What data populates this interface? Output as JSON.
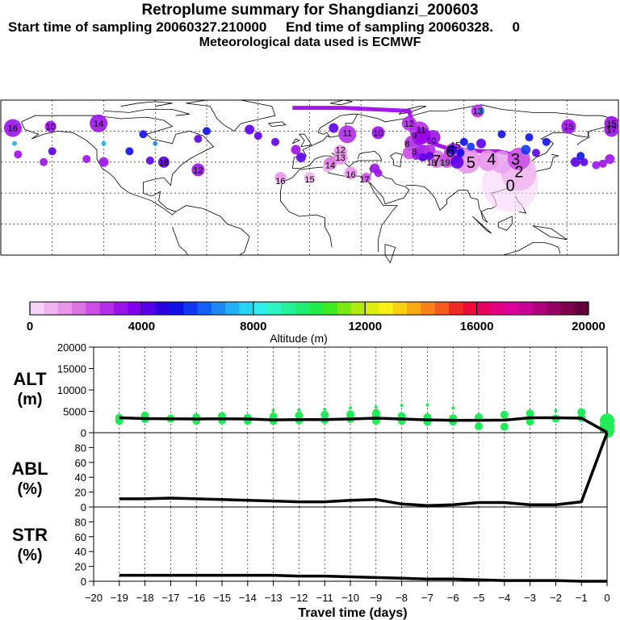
{
  "header": {
    "title": "Retroplume summary for Shangdianzi_200603",
    "sampling_line": "Start time of sampling 20060327.210000     End time of sampling 20060328.     0",
    "met_line": "Meteorological data used is ECMWF"
  },
  "map": {
    "cluster_labels": [
      {
        "label": "16",
        "lon": -173,
        "lat": 62
      },
      {
        "label": "10",
        "lon": -151,
        "lat": 63
      },
      {
        "label": "14",
        "lon": -123,
        "lat": 65
      },
      {
        "label": "12",
        "lon": 58,
        "lat": 65
      },
      {
        "label": "13",
        "lon": 98,
        "lat": 73
      },
      {
        "label": "15",
        "lon": 151,
        "lat": 63
      },
      {
        "label": "15",
        "lon": 176,
        "lat": 65
      },
      {
        "label": "17",
        "lon": 176,
        "lat": 61
      },
      {
        "label": "11",
        "lon": 22,
        "lat": 59
      },
      {
        "label": "10",
        "lon": 40,
        "lat": 59
      },
      {
        "label": "9",
        "lon": 61,
        "lat": 57
      },
      {
        "label": "11",
        "lon": 65,
        "lat": 61
      },
      {
        "label": "10",
        "lon": 71,
        "lat": 54
      },
      {
        "label": "8",
        "lon": 61,
        "lat": 47
      },
      {
        "label": "8",
        "lon": 57,
        "lat": 52
      },
      {
        "label": "7",
        "lon": 74,
        "lat": 41
      },
      {
        "label": "6",
        "lon": 82,
        "lat": 47
      },
      {
        "label": "5",
        "lon": 94,
        "lat": 40
      },
      {
        "label": "4",
        "lon": 106,
        "lat": 42
      },
      {
        "label": "3",
        "lon": 120,
        "lat": 42
      },
      {
        "label": "2",
        "lon": 122,
        "lat": 34
      },
      {
        "label": "0",
        "lon": 117,
        "lat": 25
      },
      {
        "label": "12",
        "lon": 18,
        "lat": 48
      },
      {
        "label": "13",
        "lon": 18,
        "lat": 43
      },
      {
        "label": "14",
        "lon": 12,
        "lat": 38
      },
      {
        "label": "16",
        "lon": 24,
        "lat": 32
      },
      {
        "label": "16",
        "lon": -17,
        "lat": 28
      },
      {
        "label": "15",
        "lon": 0,
        "lat": 29
      },
      {
        "label": "17",
        "lon": 32,
        "lat": 29
      },
      {
        "label": "15",
        "lon": 85,
        "lat": 51
      },
      {
        "label": "18",
        "lon": 71,
        "lat": 40
      },
      {
        "label": "19",
        "lon": 79,
        "lat": 40
      },
      {
        "label": "12",
        "lon": -65,
        "lat": 35
      },
      {
        "label": "18",
        "lon": -85,
        "lat": 40
      }
    ]
  },
  "colorbar": {
    "tick_labels": [
      "0",
      "4000",
      "8000",
      "12000",
      "16000",
      "20000"
    ],
    "label": "Altitude (m)",
    "colors": [
      "#f7d3f7",
      "#f0b4f0",
      "#e896ea",
      "#dc74e6",
      "#cc4ee6",
      "#b22ee8",
      "#9a12ea",
      "#8000ee",
      "#5a00e8",
      "#2a00e0",
      "#1010e8",
      "#1038f2",
      "#1460f4",
      "#1c88f6",
      "#20b0f6",
      "#28d4f4",
      "#2eeee8",
      "#2ef4c4",
      "#26f09a",
      "#1eee70",
      "#20ec48",
      "#3eea20",
      "#7aea12",
      "#b0ea10",
      "#dcee10",
      "#f8f010",
      "#f8d010",
      "#f8aa10",
      "#f8821a",
      "#f45a1e",
      "#f02a20",
      "#ec0a38",
      "#e8005c",
      "#e40080",
      "#dc009c",
      "#c80096",
      "#b0007c",
      "#960064",
      "#7c004c",
      "#62003c"
    ]
  },
  "chart_data": [
    {
      "type": "line",
      "name": "altitude",
      "ylabel": "ALT",
      "ylabel2": "(m)",
      "ylim": [
        0,
        20000
      ],
      "yticks": [
        0,
        5000,
        10000,
        15000,
        20000
      ],
      "x": [
        -19,
        -18,
        -17,
        -16,
        -15,
        -14,
        -13,
        -12,
        -11,
        -10,
        -9,
        -8,
        -7,
        -6,
        -5,
        -4,
        -3,
        -2,
        -1,
        0
      ],
      "values": [
        3500,
        3300,
        3250,
        3200,
        3250,
        3200,
        3000,
        3050,
        3050,
        3200,
        3400,
        3200,
        3000,
        2900,
        2900,
        2950,
        3500,
        3500,
        3400,
        100
      ],
      "scatter_points": [
        [
          -19,
          3500
        ],
        [
          -19,
          2800
        ],
        [
          -18,
          3200
        ],
        [
          -18,
          4000
        ],
        [
          -17,
          3300
        ],
        [
          -16,
          2800
        ],
        [
          -16,
          3600
        ],
        [
          -15,
          2900
        ],
        [
          -15,
          3900
        ],
        [
          -14,
          2800
        ],
        [
          -14,
          3500
        ],
        [
          -13,
          2800
        ],
        [
          -13,
          3800
        ],
        [
          -13,
          5200
        ],
        [
          -12,
          2900
        ],
        [
          -12,
          4000
        ],
        [
          -12,
          5300
        ],
        [
          -11,
          3000
        ],
        [
          -11,
          4200
        ],
        [
          -11,
          5500
        ],
        [
          -10,
          3200
        ],
        [
          -10,
          4300
        ],
        [
          -10,
          5800
        ],
        [
          -9,
          2800
        ],
        [
          -9,
          3900
        ],
        [
          -9,
          4600
        ],
        [
          -9,
          6000
        ],
        [
          -8,
          2800
        ],
        [
          -8,
          3900
        ],
        [
          -8,
          6400
        ],
        [
          -7,
          2600
        ],
        [
          -7,
          3600
        ],
        [
          -7,
          6500
        ],
        [
          -6,
          2600
        ],
        [
          -6,
          3400
        ],
        [
          -6,
          5800
        ],
        [
          -5,
          1500
        ],
        [
          -5,
          3600
        ],
        [
          -4,
          1400
        ],
        [
          -4,
          4200
        ],
        [
          -3,
          2600
        ],
        [
          -3,
          4500
        ],
        [
          -2,
          3300
        ],
        [
          -2,
          5200
        ],
        [
          -1,
          3500
        ],
        [
          -1,
          4800
        ],
        [
          0,
          500
        ],
        [
          0,
          1500
        ],
        [
          0,
          2800
        ]
      ]
    },
    {
      "type": "line",
      "name": "abl",
      "ylabel": "ABL",
      "ylabel2": "(%)",
      "ylim": [
        0,
        100
      ],
      "yticks": [
        0,
        20,
        40,
        60,
        80
      ],
      "x": [
        -19,
        -18,
        -17,
        -16,
        -15,
        -14,
        -13,
        -12,
        -11,
        -10,
        -9,
        -8,
        -7,
        -6,
        -5,
        -4,
        -3,
        -2,
        -1,
        0
      ],
      "values": [
        11,
        11,
        12,
        11,
        10,
        9,
        8,
        7,
        7,
        9,
        10,
        4,
        2,
        3,
        6,
        6,
        3,
        3,
        7,
        100
      ]
    },
    {
      "type": "line",
      "name": "str",
      "ylabel": "STR",
      "ylabel2": "(%)",
      "ylim": [
        0,
        100
      ],
      "yticks": [
        0,
        20,
        40,
        60,
        80
      ],
      "x": [
        -19,
        -18,
        -17,
        -16,
        -15,
        -14,
        -13,
        -12,
        -11,
        -10,
        -9,
        -8,
        -7,
        -6,
        -5,
        -4,
        -3,
        -2,
        -1,
        0
      ],
      "values": [
        8,
        8,
        8,
        8,
        8,
        8,
        8,
        7,
        7,
        6,
        5,
        4,
        3,
        3,
        2,
        1,
        1,
        1,
        0,
        0
      ]
    }
  ],
  "xaxis": {
    "label": "Travel time (days)",
    "ticks": [
      "−20",
      "−19",
      "−18",
      "−17",
      "−16",
      "−15",
      "−14",
      "−13",
      "−12",
      "−11",
      "−10",
      "−9",
      "−8",
      "−7",
      "−6",
      "−5",
      "−4",
      "−3",
      "−2",
      "−1",
      "0"
    ],
    "tick_labels": [
      "−20",
      "−19",
      "−18",
      "−17",
      "−16",
      "−15",
      "−14",
      "−13",
      "−12",
      "−11",
      "−10",
      "−9",
      "−8",
      "−7",
      "−6",
      "−5",
      "−4",
      "−3",
      "−2",
      "−1",
      "0"
    ]
  }
}
